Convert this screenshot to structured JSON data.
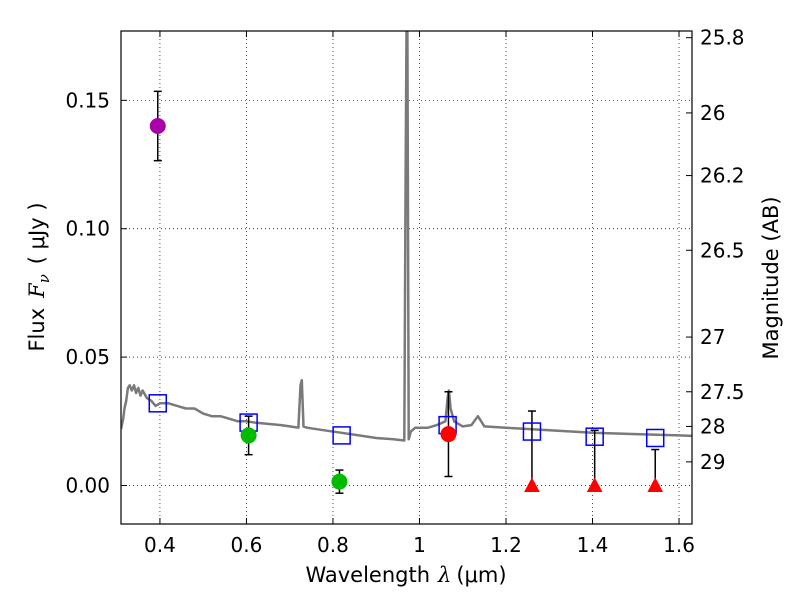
{
  "chart_data": {
    "type": "scatter",
    "title": "",
    "xlabel": {
      "prefix": "Wavelength",
      "symbol": "λ",
      "unit": "(μm)"
    },
    "ylabel": {
      "prefix": "Flux",
      "symbol": "F",
      "subscript": "ν",
      "unit": "( μJy )"
    },
    "y2label": "Magnitude (AB)",
    "xlim": [
      0.31,
      1.63
    ],
    "ylim": [
      -0.015,
      0.177
    ],
    "grid": true,
    "xticks": [
      0.4,
      0.6,
      0.8,
      1.0,
      1.2,
      1.4,
      1.6
    ],
    "xtick_labels": [
      "0.4",
      "0.6",
      "0.8",
      "1",
      "1.2",
      "1.4",
      "1.6"
    ],
    "yticks": [
      0.0,
      0.05,
      0.1,
      0.15
    ],
    "ytick_labels": [
      "0.00",
      "0.05",
      "0.10",
      "0.15"
    ],
    "y2ticks": [
      {
        "label": "25.8",
        "flux": 0.1744
      },
      {
        "label": "26",
        "flux": 0.1451
      },
      {
        "label": "26.2",
        "flux": 0.1207
      },
      {
        "label": "26.5",
        "flux": 0.0916
      },
      {
        "label": "27",
        "flux": 0.0578
      },
      {
        "label": "27.5",
        "flux": 0.0365
      },
      {
        "label": "28",
        "flux": 0.023
      },
      {
        "label": "29",
        "flux": 0.0092
      }
    ],
    "colors": {
      "measured_violet": "#aa00aa",
      "measured_green": "#00bb00",
      "measured_red": "#ff0000",
      "upper_limit": "#ff0000",
      "model_box": "#0000ff",
      "sed": "#7a7a7a",
      "errorbar": "#000000"
    },
    "series": [
      {
        "name": "SED model spectrum",
        "kind": "line",
        "x": [
          0.31,
          0.315,
          0.318,
          0.322,
          0.326,
          0.33,
          0.335,
          0.34,
          0.345,
          0.35,
          0.355,
          0.36,
          0.37,
          0.38,
          0.39,
          0.4,
          0.42,
          0.44,
          0.46,
          0.48,
          0.5,
          0.52,
          0.54,
          0.56,
          0.58,
          0.6,
          0.62,
          0.65,
          0.68,
          0.7,
          0.72,
          0.725,
          0.728,
          0.732,
          0.74,
          0.78,
          0.82,
          0.86,
          0.9,
          0.94,
          0.965,
          0.968,
          0.97,
          0.972,
          0.975,
          0.98,
          0.99,
          1.0,
          1.02,
          1.04,
          1.06,
          1.065,
          1.068,
          1.072,
          1.08,
          1.1,
          1.12,
          1.135,
          1.15,
          1.2,
          1.3,
          1.4,
          1.5,
          1.6,
          1.63
        ],
        "y": [
          0.022,
          0.026,
          0.03,
          0.033,
          0.038,
          0.039,
          0.037,
          0.039,
          0.036,
          0.038,
          0.035,
          0.037,
          0.034,
          0.033,
          0.031,
          0.032,
          0.032,
          0.031,
          0.03,
          0.03,
          0.028,
          0.027,
          0.027,
          0.026,
          0.025,
          0.025,
          0.0245,
          0.024,
          0.0235,
          0.023,
          0.0225,
          0.039,
          0.041,
          0.023,
          0.0225,
          0.0215,
          0.0205,
          0.0195,
          0.0185,
          0.018,
          0.0175,
          0.12,
          0.177,
          0.177,
          0.018,
          0.021,
          0.0225,
          0.0225,
          0.0225,
          0.0235,
          0.025,
          0.034,
          0.037,
          0.03,
          0.025,
          0.023,
          0.0235,
          0.027,
          0.023,
          0.0225,
          0.0215,
          0.0205,
          0.02,
          0.0195,
          0.0193
        ]
      },
      {
        "name": "Model photometry",
        "kind": "open-square",
        "x": [
          0.395,
          0.605,
          0.82,
          1.065,
          1.26,
          1.405,
          1.545
        ],
        "y": [
          0.032,
          0.0245,
          0.0195,
          0.0235,
          0.021,
          0.019,
          0.0185
        ]
      },
      {
        "name": "Measured flux",
        "kind": "filled-circle",
        "x": [
          0.395,
          0.605,
          0.815,
          1.067
        ],
        "y": [
          0.14,
          0.0195,
          0.0015,
          0.02
        ],
        "yerr": [
          0.0135,
          0.0075,
          0.0045,
          0.0165
        ],
        "colors": [
          "#aa00aa",
          "#00bb00",
          "#00bb00",
          "#ff0000"
        ]
      },
      {
        "name": "Upper limits",
        "kind": "filled-triangle",
        "x": [
          1.26,
          1.405,
          1.545
        ],
        "y": [
          0.0,
          0.0,
          0.0
        ],
        "ytop": [
          0.029,
          0.0215,
          0.014
        ]
      }
    ]
  }
}
